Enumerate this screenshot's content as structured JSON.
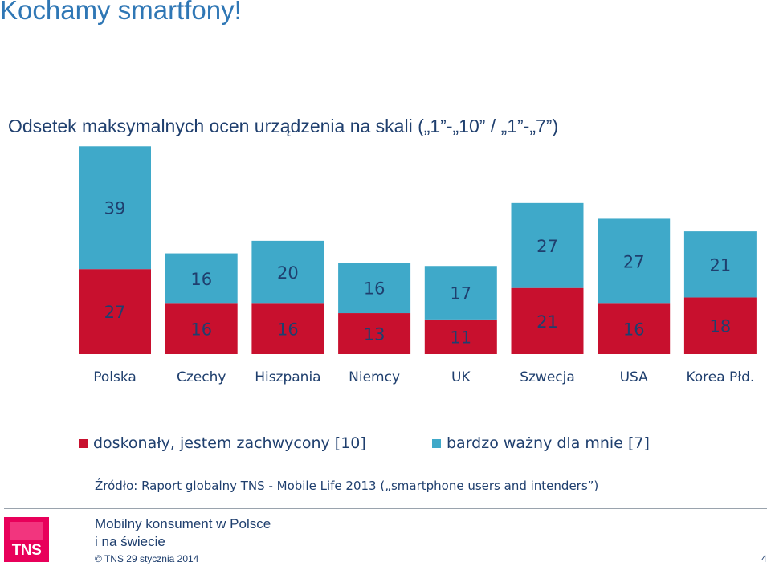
{
  "slide": {
    "title": "Kochamy smartfony!",
    "source": "Źródło: Raport globalny TNS - Mobile Life 2013 („smartphone users and intenders”)",
    "footer_title_line1": "Mobilny konsument w Polsce",
    "footer_title_line2": "i na świecie",
    "footer_copy": "© TNS   29 stycznia 2014",
    "page_number": "4",
    "logo_text": "TNS"
  },
  "colors": {
    "series_bottom": "#c8102e",
    "series_top": "#3fa9c9",
    "text": "#1f3f6e",
    "title": "#2f77b5"
  },
  "chart_data": {
    "type": "bar",
    "stacked": true,
    "title": "Odsetek maksymalnych ocen urządzenia na skali („1”-„10” / „1”-„7”)",
    "categories": [
      "Polska",
      "Czechy",
      "Hiszpania",
      "Niemcy",
      "UK",
      "Szwecja",
      "USA",
      "Korea Płd."
    ],
    "series": [
      {
        "name": "doskonały, jestem zachwycony [10]",
        "color": "#c8102e",
        "values": [
          27,
          16,
          16,
          13,
          11,
          21,
          16,
          18
        ]
      },
      {
        "name": "bardzo ważny dla mnie [7]",
        "color": "#3fa9c9",
        "values": [
          39,
          16,
          20,
          16,
          17,
          27,
          27,
          21
        ]
      }
    ],
    "data_labels": true,
    "legend": "bottom",
    "grid": false
  }
}
